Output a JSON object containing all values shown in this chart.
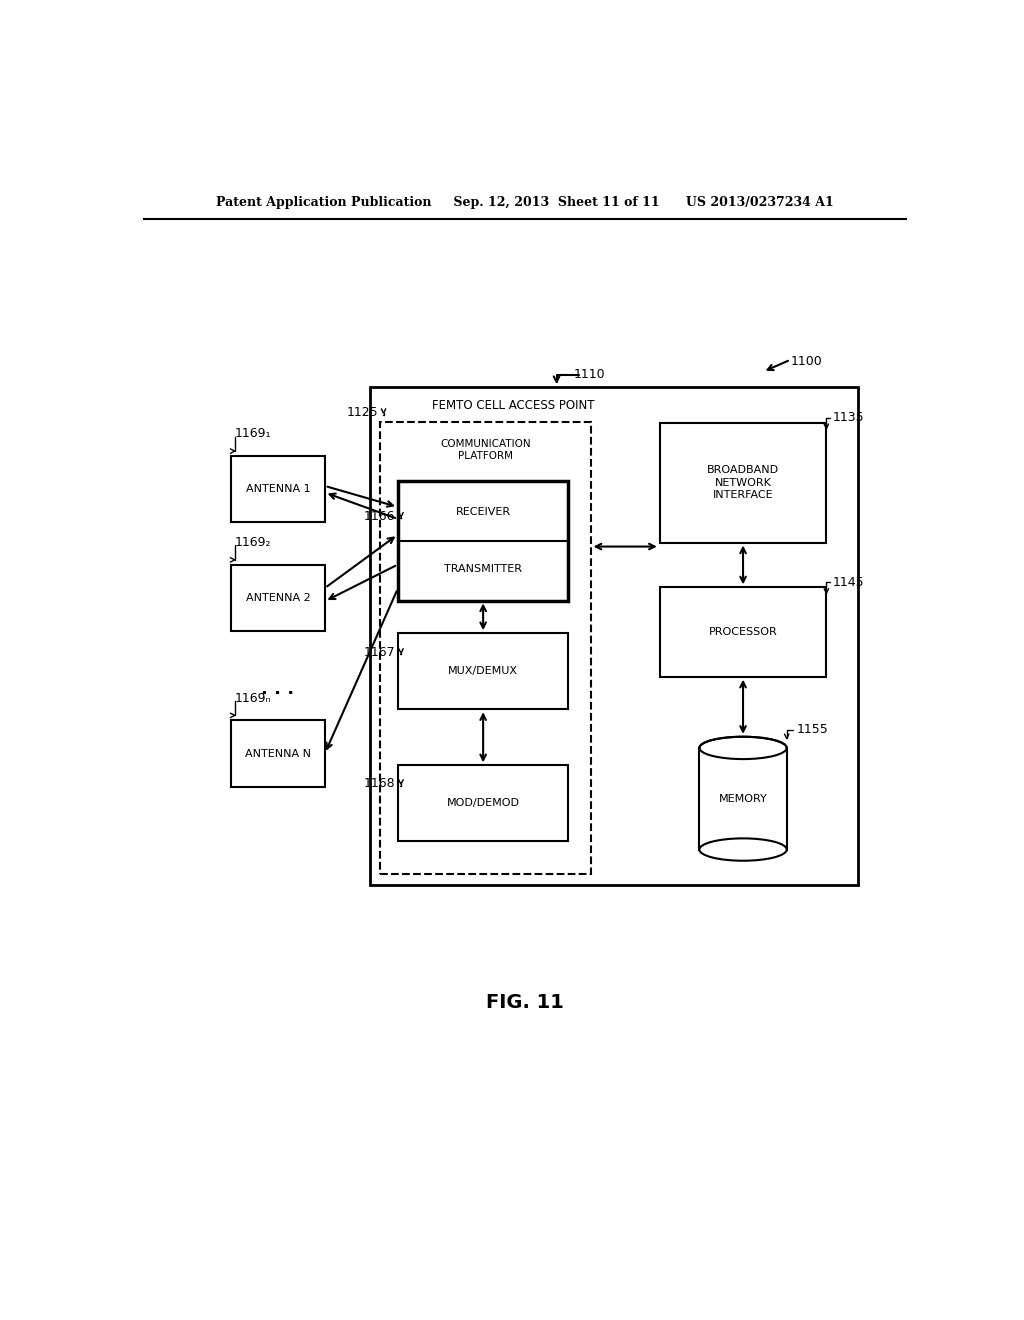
{
  "bg_color": "#ffffff",
  "header_text": "Patent Application Publication     Sep. 12, 2013  Sheet 11 of 11      US 2013/0237234 A1",
  "fig_label": "FIG. 11",
  "label_1100": "1100",
  "label_1110": "1110",
  "label_1125": "1125",
  "label_1135": "1135",
  "label_1145": "1145",
  "label_1155": "1155",
  "label_1166": "1166",
  "label_1167": "1167",
  "label_1168": "1168",
  "label_1169_1": "1169₁",
  "label_1169_2": "1169₂",
  "label_1169_N": "1169ₙ",
  "femto_cell_label": "FEMTO CELL ACCESS POINT"
}
